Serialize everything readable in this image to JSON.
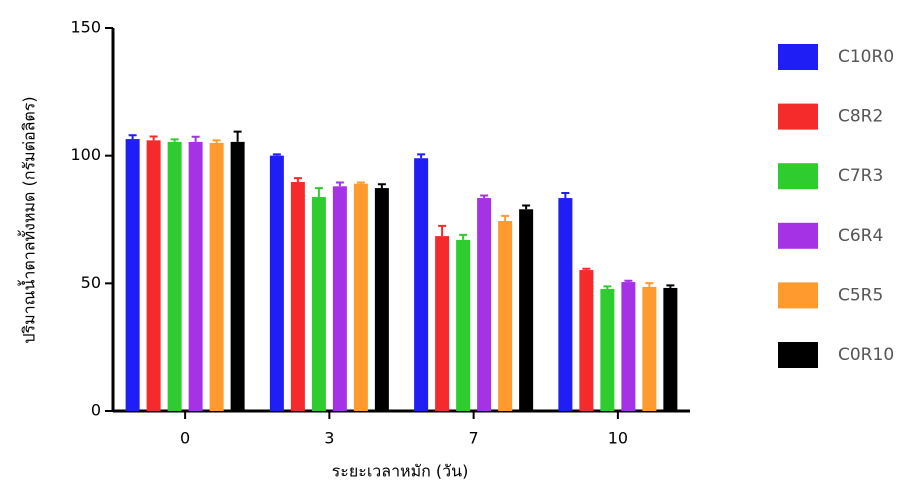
{
  "chart_data": {
    "type": "bar",
    "x_label": "ระยะเวลาหมัก (วัน)",
    "y_label": "ปริมาณน้ำตาลทั้งหมด (กรัมต่อลิตร)",
    "categories": [
      "0",
      "3",
      "7",
      "10"
    ],
    "ylim": [
      0,
      150
    ],
    "yticks": [
      0,
      50,
      100,
      150
    ],
    "series": [
      {
        "name": "C10R0",
        "color": "#1f1ff5",
        "values": [
          106.5,
          100,
          99,
          83.4
        ],
        "errors": [
          1.5,
          0.5,
          1.5,
          2
        ]
      },
      {
        "name": "C8R2",
        "color": "#f52a2a",
        "values": [
          106,
          89.7,
          68.5,
          55.2
        ],
        "errors": [
          1.5,
          1.5,
          4,
          0.5
        ]
      },
      {
        "name": "C7R3",
        "color": "#2ecc2e",
        "values": [
          105.4,
          83.8,
          67,
          47.8
        ],
        "errors": [
          1,
          3.5,
          2,
          1
        ]
      },
      {
        "name": "C6R4",
        "color": "#a632e6",
        "values": [
          105.4,
          88,
          83.4,
          50.5
        ],
        "errors": [
          2,
          1.5,
          1,
          0.5
        ]
      },
      {
        "name": "C5R5",
        "color": "#ff9a2e",
        "values": [
          105,
          89,
          74.4,
          48.6
        ],
        "errors": [
          1,
          0.5,
          2,
          1.5
        ]
      },
      {
        "name": "C0R10",
        "color": "#000000",
        "values": [
          105.4,
          87.3,
          79,
          48.2
        ],
        "errors": [
          4,
          1.5,
          1.5,
          1
        ]
      }
    ]
  }
}
